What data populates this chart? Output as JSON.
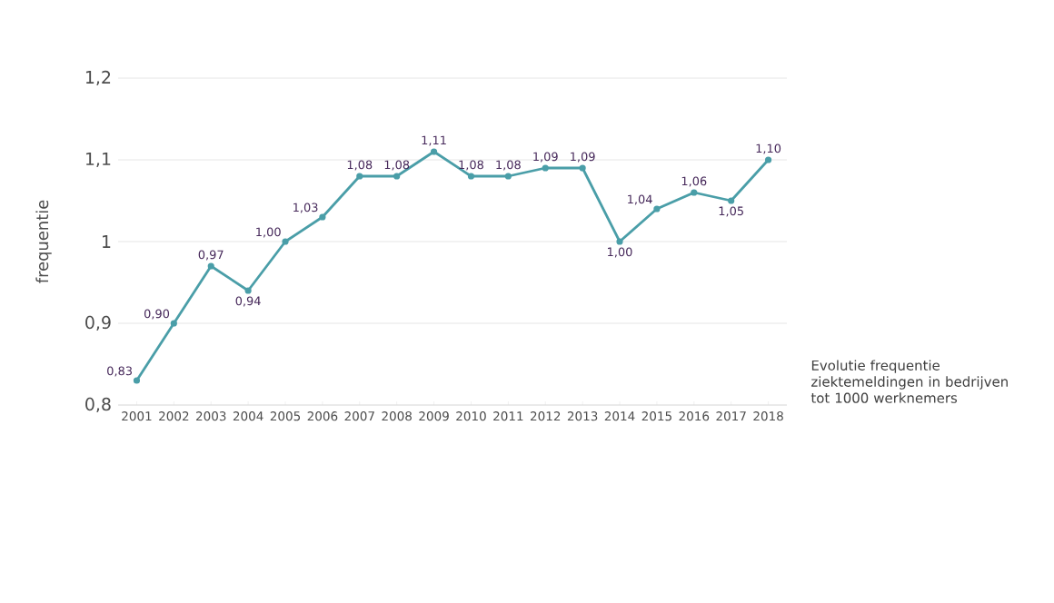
{
  "chart_data": {
    "type": "line",
    "ylabel": "frequentie",
    "categories": [
      "2001",
      "2002",
      "2003",
      "2004",
      "2005",
      "2006",
      "2007",
      "2008",
      "2009",
      "2010",
      "2011",
      "2012",
      "2013",
      "2014",
      "2015",
      "2016",
      "2017",
      "2018"
    ],
    "series": [
      {
        "color": "#4a9ea8",
        "values": [
          0.83,
          0.9,
          0.97,
          0.94,
          1.0,
          1.03,
          1.08,
          1.08,
          1.11,
          1.08,
          1.08,
          1.09,
          1.09,
          1.0,
          1.04,
          1.06,
          1.05,
          1.1
        ],
        "value_labels": [
          "0,83",
          "0,90",
          "0,97",
          "0,94",
          "1,00",
          "1,03",
          "1,08",
          "1,08",
          "1,11",
          "1,08",
          "1,08",
          "1,09",
          "1,09",
          "1,00",
          "1,04",
          "1,06",
          "1,05",
          "1,10"
        ]
      }
    ],
    "ylim": [
      0.8,
      1.2
    ],
    "yticks": [
      {
        "value": 0.8,
        "label": "0,8"
      },
      {
        "value": 0.9,
        "label": "0,9"
      },
      1,
      {
        "value": 1.1,
        "label": "1,1"
      },
      {
        "value": 1.2,
        "label": "1,2"
      }
    ],
    "grid": "y",
    "marker": "circle",
    "line_style": "solid",
    "annotations": [
      "Evolutie frequentie ziektemeldingen in bedrijven tot 1000 werknemers"
    ]
  }
}
